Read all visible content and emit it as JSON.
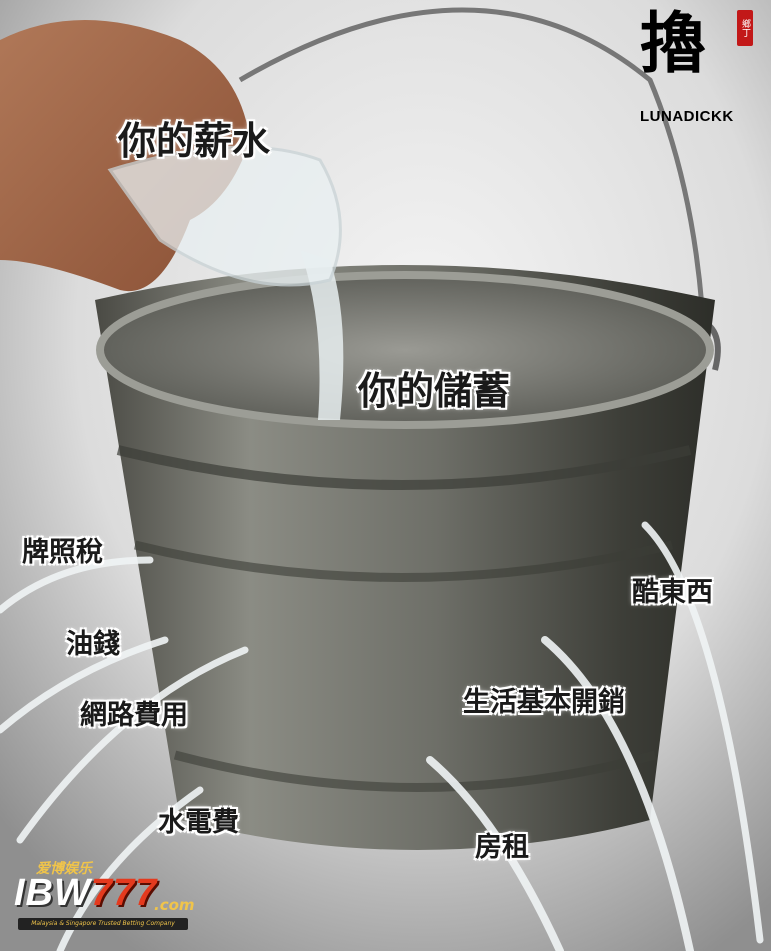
{
  "labels": {
    "salary": "你的薪水",
    "savings": "你的儲蓄",
    "license_tax": "牌照稅",
    "fuel": "油錢",
    "internet": "網路費用",
    "utilities": "水電費",
    "cool_stuff": "酷東西",
    "living_costs": "生活基本開銷",
    "rent": "房租"
  },
  "watermark": {
    "char": "擼",
    "name": "LUNADICKK",
    "seal": "鄉丁"
  },
  "logo": {
    "top_text": "爱博娱乐",
    "brand_prefix": "IBW",
    "brand_number": "777",
    "domain": ".com",
    "tagline": "Malaysia & Singapore Trusted Betting Company"
  }
}
